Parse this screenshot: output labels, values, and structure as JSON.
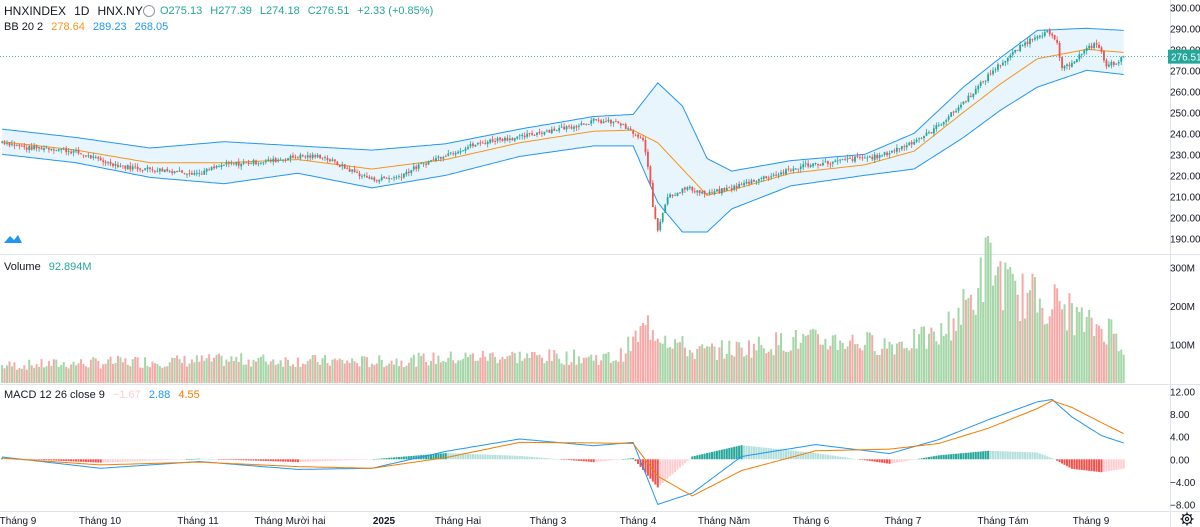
{
  "header": {
    "symbol": "HNXINDEX",
    "interval": "1D",
    "exchange": "HNX.NY",
    "open": "O275.13",
    "high": "H277.39",
    "low": "L274.18",
    "close": "C276.51",
    "change": "+2.33 (+0.85%)"
  },
  "bb": {
    "label": "BB 20 2",
    "mid": "278.64",
    "upper": "289.23",
    "lower": "268.05"
  },
  "volume": {
    "label": "Volume",
    "value": "92.894M"
  },
  "macd": {
    "label": "MACD 12 26 close 9",
    "hist": "−1.67",
    "macd": "2.88",
    "signal": "4.55"
  },
  "last_price": "276.51",
  "colors": {
    "up": "#26a69a",
    "up_fill": "#4caf50",
    "down": "#ef5350",
    "bb": "#2196f3",
    "bb_fill": "#e3f2fd",
    "mid": "#f7931a",
    "macd": "#2196f3",
    "signal": "#f57c00"
  },
  "chart_data": {
    "type": "candlestick",
    "price_axis": {
      "ticks": [
        "300.00",
        "290.00",
        "280.00",
        "270.00",
        "260.00",
        "250.00",
        "240.00",
        "230.00",
        "220.00",
        "210.00",
        "200.00",
        "190.00"
      ],
      "ylim": [
        183,
        303
      ]
    },
    "volume_axis": {
      "ticks": [
        "300M",
        "200M",
        "100M"
      ],
      "ylim": [
        0,
        330
      ]
    },
    "macd_axis": {
      "ticks": [
        "12.00",
        "8.00",
        "4.00",
        "0.00",
        "-4.00",
        "-8.00"
      ],
      "ylim": [
        -9,
        13
      ]
    },
    "time_axis": [
      "Tháng 9",
      "Tháng 10",
      "Tháng 11",
      "Tháng Mười hai",
      "2025",
      "Tháng Hai",
      "Tháng 3",
      "Tháng 4",
      "Tháng Năm",
      "Tháng 6",
      "Tháng 7",
      "Tháng Tám",
      "Tháng 9"
    ],
    "close_keypoints": [
      [
        0,
        236
      ],
      [
        10,
        233
      ],
      [
        20,
        233
      ],
      [
        30,
        231
      ],
      [
        40,
        227
      ],
      [
        50,
        224
      ],
      [
        60,
        223
      ],
      [
        70,
        222
      ],
      [
        80,
        221
      ],
      [
        90,
        225
      ],
      [
        100,
        226
      ],
      [
        110,
        227
      ],
      [
        120,
        229
      ],
      [
        130,
        229
      ],
      [
        140,
        223
      ],
      [
        150,
        218
      ],
      [
        160,
        219
      ],
      [
        170,
        225
      ],
      [
        180,
        230
      ],
      [
        190,
        234
      ],
      [
        200,
        237
      ],
      [
        210,
        238
      ],
      [
        220,
        241
      ],
      [
        230,
        243
      ],
      [
        240,
        246
      ],
      [
        250,
        245
      ],
      [
        256,
        240
      ],
      [
        260,
        236
      ],
      [
        262,
        225
      ],
      [
        264,
        205
      ],
      [
        266,
        194
      ],
      [
        268,
        203
      ],
      [
        270,
        210
      ],
      [
        278,
        214
      ],
      [
        286,
        211
      ],
      [
        296,
        214
      ],
      [
        306,
        218
      ],
      [
        316,
        221
      ],
      [
        326,
        225
      ],
      [
        336,
        226
      ],
      [
        346,
        228
      ],
      [
        356,
        229
      ],
      [
        366,
        234
      ],
      [
        376,
        240
      ],
      [
        386,
        250
      ],
      [
        396,
        262
      ],
      [
        402,
        270
      ],
      [
        408,
        276
      ],
      [
        414,
        282
      ],
      [
        420,
        287
      ],
      [
        424,
        288
      ],
      [
        428,
        283
      ],
      [
        430,
        270
      ],
      [
        434,
        274
      ],
      [
        440,
        280
      ],
      [
        444,
        283
      ],
      [
        446,
        278
      ],
      [
        448,
        272
      ],
      [
        452,
        274
      ],
      [
        455,
        276.5
      ]
    ],
    "bb_upper_keypoints": [
      [
        0,
        242
      ],
      [
        30,
        238
      ],
      [
        60,
        233
      ],
      [
        90,
        236
      ],
      [
        120,
        234
      ],
      [
        150,
        232
      ],
      [
        180,
        235
      ],
      [
        210,
        242
      ],
      [
        240,
        248
      ],
      [
        256,
        249
      ],
      [
        266,
        264
      ],
      [
        276,
        253
      ],
      [
        286,
        228
      ],
      [
        296,
        222
      ],
      [
        320,
        227
      ],
      [
        350,
        230
      ],
      [
        370,
        240
      ],
      [
        390,
        262
      ],
      [
        405,
        276
      ],
      [
        420,
        289
      ],
      [
        440,
        290
      ],
      [
        455,
        289
      ]
    ],
    "bb_lower_keypoints": [
      [
        0,
        230
      ],
      [
        30,
        226
      ],
      [
        60,
        219
      ],
      [
        90,
        216
      ],
      [
        120,
        221
      ],
      [
        150,
        214
      ],
      [
        180,
        220
      ],
      [
        210,
        229
      ],
      [
        240,
        234
      ],
      [
        256,
        234
      ],
      [
        266,
        207
      ],
      [
        276,
        193
      ],
      [
        286,
        193
      ],
      [
        296,
        204
      ],
      [
        320,
        215
      ],
      [
        350,
        220
      ],
      [
        370,
        223
      ],
      [
        390,
        238
      ],
      [
        405,
        251
      ],
      [
        420,
        262
      ],
      [
        440,
        270
      ],
      [
        455,
        268
      ]
    ],
    "volume_keypoints": [
      [
        0,
        45
      ],
      [
        50,
        55
      ],
      [
        100,
        60
      ],
      [
        150,
        55
      ],
      [
        200,
        70
      ],
      [
        250,
        65
      ],
      [
        262,
        150
      ],
      [
        270,
        120
      ],
      [
        280,
        80
      ],
      [
        300,
        90
      ],
      [
        320,
        110
      ],
      [
        340,
        110
      ],
      [
        360,
        100
      ],
      [
        380,
        120
      ],
      [
        395,
        230
      ],
      [
        400,
        320
      ],
      [
        410,
        230
      ],
      [
        420,
        220
      ],
      [
        430,
        200
      ],
      [
        440,
        150
      ],
      [
        450,
        140
      ],
      [
        455,
        93
      ]
    ],
    "macd_keypoints": [
      [
        0,
        0.4
      ],
      [
        40,
        -1.6
      ],
      [
        80,
        -0.4
      ],
      [
        120,
        -1.8
      ],
      [
        150,
        -1.6
      ],
      [
        180,
        1.4
      ],
      [
        210,
        3.6
      ],
      [
        240,
        2.4
      ],
      [
        256,
        3.0
      ],
      [
        266,
        -8.0
      ],
      [
        280,
        -6.0
      ],
      [
        300,
        0.5
      ],
      [
        330,
        2.6
      ],
      [
        360,
        1.0
      ],
      [
        380,
        3.5
      ],
      [
        400,
        7.0
      ],
      [
        420,
        10.2
      ],
      [
        426,
        10.6
      ],
      [
        434,
        7.5
      ],
      [
        446,
        4.2
      ],
      [
        455,
        2.88
      ]
    ],
    "signal_keypoints": [
      [
        0,
        0.2
      ],
      [
        40,
        -1.0
      ],
      [
        80,
        -0.5
      ],
      [
        120,
        -1.3
      ],
      [
        150,
        -1.6
      ],
      [
        180,
        0.3
      ],
      [
        210,
        3.0
      ],
      [
        240,
        2.9
      ],
      [
        256,
        2.8
      ],
      [
        266,
        -3.0
      ],
      [
        280,
        -6.5
      ],
      [
        300,
        -2.0
      ],
      [
        330,
        1.5
      ],
      [
        360,
        1.8
      ],
      [
        380,
        2.8
      ],
      [
        400,
        5.5
      ],
      [
        420,
        9.0
      ],
      [
        426,
        10.4
      ],
      [
        434,
        9.2
      ],
      [
        446,
        6.5
      ],
      [
        455,
        4.55
      ]
    ]
  }
}
